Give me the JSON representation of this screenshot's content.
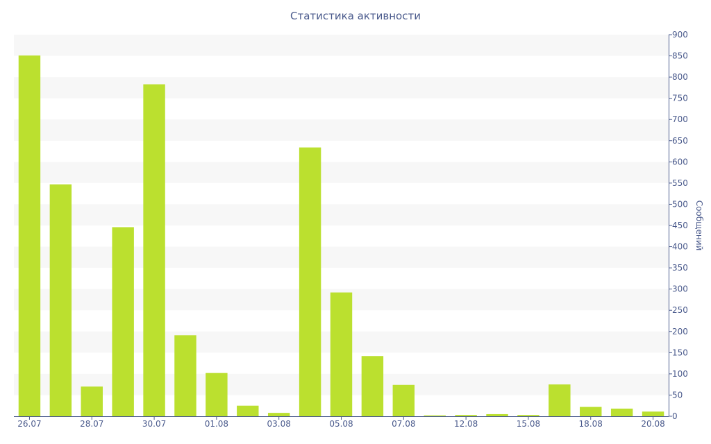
{
  "chart_data": {
    "type": "bar",
    "title": "Статистика активности",
    "xlabel": "",
    "ylabel": "Сообщений",
    "y_axis_side": "right",
    "ylim": [
      0,
      900
    ],
    "y_ticks": [
      0,
      50,
      100,
      150,
      200,
      250,
      300,
      350,
      400,
      450,
      500,
      550,
      600,
      650,
      700,
      750,
      800,
      850,
      900
    ],
    "grid": "alternating horizontal bands",
    "legend": "none",
    "categories": [
      "26.07",
      "27.07",
      "28.07",
      "29.07",
      "30.07",
      "31.07",
      "01.08",
      "02.08",
      "03.08",
      "04.08",
      "05.08",
      "06.08",
      "07.08",
      "11.08",
      "12.08",
      "14.08",
      "15.08",
      "17.08",
      "18.08",
      "19.08",
      "20.08"
    ],
    "visible_x_labels": [
      "26.07",
      "28.07",
      "30.07",
      "01.08",
      "03.08",
      "05.08",
      "07.08",
      "12.08",
      "15.08",
      "18.08",
      "20.08"
    ],
    "values": [
      851,
      547,
      70,
      446,
      783,
      191,
      102,
      25,
      8,
      634,
      292,
      142,
      74,
      2,
      3,
      5,
      3,
      75,
      22,
      18,
      11
    ],
    "colors": {
      "bar": "#bbe02f",
      "axis": "#4a5a8c",
      "band": "#f7f7f7"
    }
  }
}
